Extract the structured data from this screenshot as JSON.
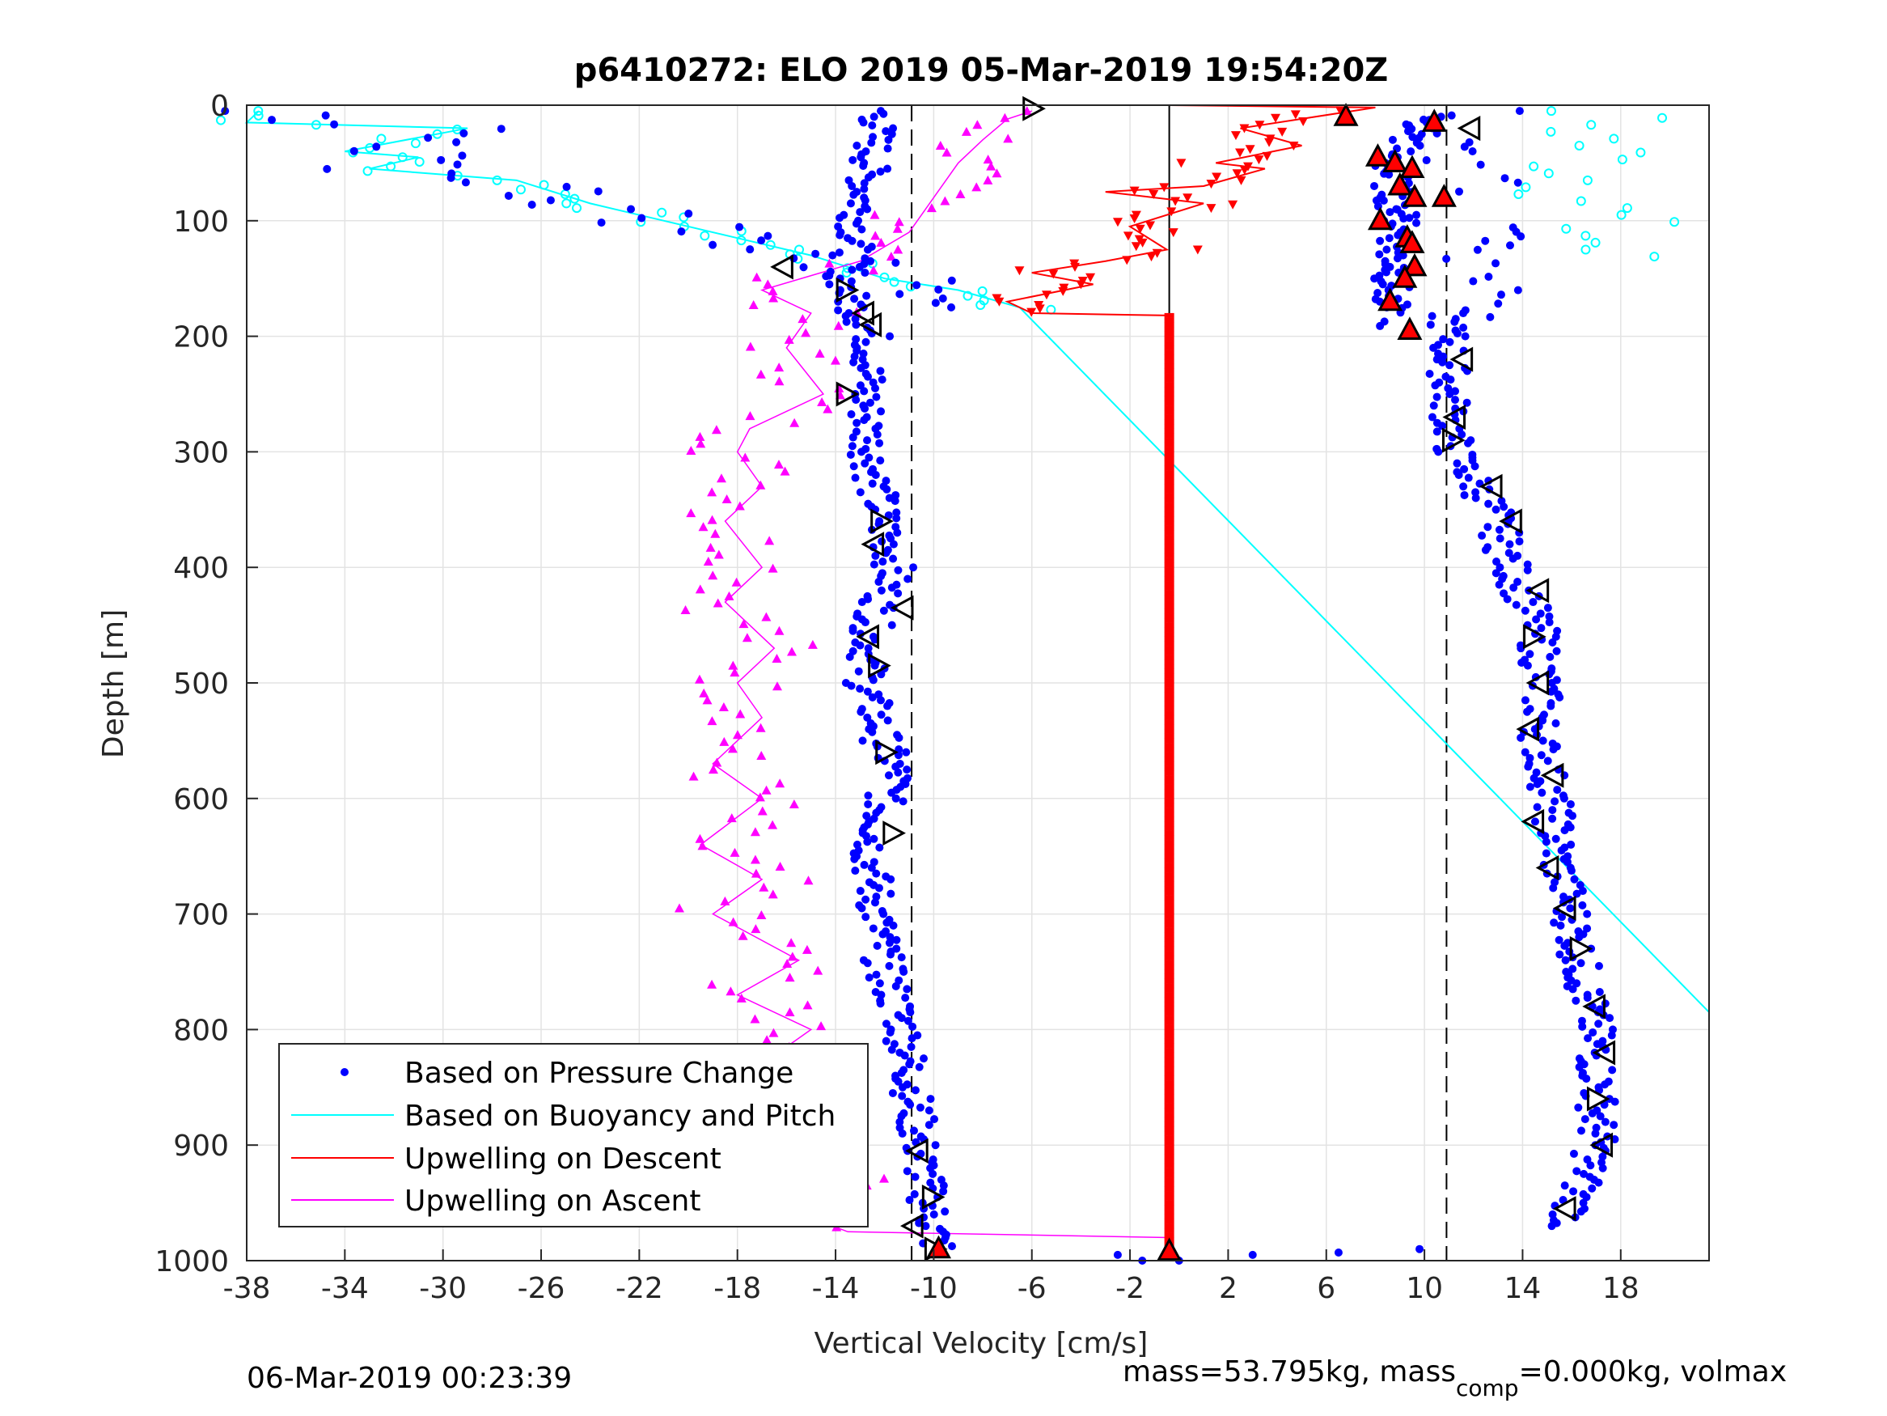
{
  "chart_data": {
    "type": "scatter",
    "title": "p6410272: ELO 2019 05-Mar-2019 19:54:20Z",
    "xlabel": "Vertical Velocity [cm/s]",
    "ylabel": "Depth [m]",
    "xlim": [
      -38,
      21.6
    ],
    "ylim": [
      0,
      1000
    ],
    "y_reversed": true,
    "x_ticks": [
      -38,
      -34,
      -30,
      -26,
      -22,
      -18,
      -14,
      -10,
      -6,
      -2,
      2,
      6,
      10,
      14,
      18
    ],
    "y_ticks": [
      0,
      100,
      200,
      300,
      400,
      500,
      600,
      700,
      800,
      900,
      1000
    ],
    "grid": true,
    "legend_position": "bottom-left",
    "legend": [
      {
        "label": "Based on Pressure Change",
        "color": "#0000ff",
        "style": "dot"
      },
      {
        "label": "Based on Buoyancy and Pitch",
        "color": "#00ffff",
        "style": "line"
      },
      {
        "label": "Upwelling on Descent",
        "color": "#ff0000",
        "style": "line"
      },
      {
        "label": "Upwelling on Ascent",
        "color": "#ff00ff",
        "style": "line"
      }
    ],
    "reference_lines": {
      "dashed_x": [
        -10.9,
        10.9
      ],
      "solid_x": [
        -0.4
      ]
    },
    "series": [
      {
        "name": "Based on Pressure Change",
        "color": "#0000ff",
        "descent": [
          [
            -12.2,
            5
          ],
          [
            -13.6,
            160
          ],
          [
            -12.5,
            200
          ],
          [
            -12.8,
            250
          ],
          [
            -12.6,
            300
          ],
          [
            -12.2,
            350
          ],
          [
            -11.6,
            400
          ],
          [
            -12.5,
            450
          ],
          [
            -12.8,
            500
          ],
          [
            -12.1,
            550
          ],
          [
            -11.5,
            580
          ],
          [
            -12.0,
            600
          ],
          [
            -12.6,
            650
          ],
          [
            -12.3,
            700
          ],
          [
            -12.0,
            750
          ],
          [
            -11.2,
            800
          ],
          [
            -10.9,
            850
          ],
          [
            -10.6,
            900
          ],
          [
            -10.3,
            940
          ],
          [
            -9.8,
            990
          ]
        ],
        "ascent": [
          [
            8.5,
            175
          ],
          [
            8.8,
            140
          ],
          [
            9.0,
            100
          ],
          [
            8.5,
            50
          ],
          [
            10.2,
            10
          ],
          [
            11.0,
            200
          ],
          [
            11.0,
            250
          ],
          [
            11.2,
            300
          ],
          [
            12.8,
            350
          ],
          [
            13.5,
            400
          ],
          [
            14.6,
            450
          ],
          [
            14.8,
            500
          ],
          [
            14.7,
            550
          ],
          [
            15.2,
            600
          ],
          [
            15.4,
            650
          ],
          [
            16.0,
            700
          ],
          [
            16.4,
            750
          ],
          [
            16.9,
            800
          ],
          [
            17.1,
            850
          ],
          [
            17.0,
            900
          ],
          [
            16.3,
            940
          ],
          [
            15.8,
            970
          ]
        ],
        "stall": [
          [
            -2.5,
            995
          ],
          [
            -1.5,
            1000
          ],
          [
            0.0,
            1000
          ],
          [
            3.0,
            995
          ],
          [
            6.5,
            993
          ],
          [
            9.8,
            990
          ]
        ]
      },
      {
        "name": "Based on Buoyancy and Pitch",
        "color": "#00ffff",
        "points": [
          [
            -37.5,
            5
          ],
          [
            -38,
            15
          ],
          [
            -29,
            20
          ],
          [
            -34,
            40
          ],
          [
            -31,
            45
          ],
          [
            -33,
            55
          ],
          [
            -27,
            65
          ],
          [
            -24,
            85
          ],
          [
            -20,
            105
          ],
          [
            -15,
            130
          ],
          [
            -12,
            150
          ],
          [
            -9,
            160
          ],
          [
            -6.5,
            175
          ],
          [
            21.6,
            785
          ]
        ]
      },
      {
        "name": "Upwelling on Descent",
        "color": "#ff0000",
        "points": [
          [
            -0.4,
            0
          ],
          [
            8,
            2
          ],
          [
            2.5,
            20
          ],
          [
            5,
            35
          ],
          [
            1.5,
            50
          ],
          [
            3.5,
            55
          ],
          [
            1,
            70
          ],
          [
            -3,
            75
          ],
          [
            1,
            85
          ],
          [
            -2,
            105
          ],
          [
            -0.5,
            125
          ],
          [
            -3,
            135
          ],
          [
            -6,
            145
          ],
          [
            -3.5,
            155
          ],
          [
            -7,
            170
          ],
          [
            -6,
            180
          ],
          [
            -0.4,
            182
          ],
          [
            -0.4,
            990
          ]
        ]
      },
      {
        "name": "Upwelling on Ascent",
        "color": "#ff00ff",
        "points": [
          [
            -0.4,
            980
          ],
          [
            -13.5,
            975
          ],
          [
            -16,
            955
          ],
          [
            -13,
            935
          ],
          [
            -16.5,
            900
          ],
          [
            -14,
            860
          ],
          [
            -17,
            830
          ],
          [
            -15,
            800
          ],
          [
            -18,
            770
          ],
          [
            -15.5,
            740
          ],
          [
            -19,
            700
          ],
          [
            -17,
            670
          ],
          [
            -19.5,
            640
          ],
          [
            -17,
            600
          ],
          [
            -19,
            570
          ],
          [
            -17,
            530
          ],
          [
            -18,
            500
          ],
          [
            -16.5,
            470
          ],
          [
            -18.5,
            430
          ],
          [
            -17,
            400
          ],
          [
            -18.5,
            360
          ],
          [
            -17,
            330
          ],
          [
            -18,
            300
          ],
          [
            -17.5,
            280
          ],
          [
            -14.5,
            250
          ],
          [
            -16,
            210
          ],
          [
            -15,
            180
          ],
          [
            -17,
            160
          ],
          [
            -13,
            135
          ],
          [
            -11,
            110
          ],
          [
            -10,
            80
          ],
          [
            -9,
            50
          ],
          [
            -8,
            30
          ],
          [
            -7,
            12
          ],
          [
            -6,
            5
          ]
        ]
      }
    ],
    "markers": {
      "open_triangles": [
        [
          -6,
          3
        ],
        [
          11.9,
          20
        ],
        [
          -16.1,
          140
        ],
        [
          -13.6,
          160
        ],
        [
          -12.8,
          180
        ],
        [
          -12.5,
          190
        ],
        [
          -13.6,
          250
        ],
        [
          11.6,
          220
        ],
        [
          11.3,
          270
        ],
        [
          11.1,
          290
        ],
        [
          12.8,
          330
        ],
        [
          13.6,
          360
        ],
        [
          -12.2,
          360
        ],
        [
          -12.4,
          380
        ],
        [
          14.7,
          420
        ],
        [
          14.4,
          460
        ],
        [
          -11.2,
          435
        ],
        [
          -12.6,
          460
        ],
        [
          -12.3,
          485
        ],
        [
          14.7,
          500
        ],
        [
          14.3,
          540
        ],
        [
          -12.0,
          560
        ],
        [
          15.3,
          580
        ],
        [
          14.5,
          620
        ],
        [
          -11.7,
          630
        ],
        [
          15.1,
          660
        ],
        [
          15.8,
          695
        ],
        [
          16.3,
          730
        ],
        [
          17.0,
          780
        ],
        [
          17.4,
          820
        ],
        [
          17.0,
          860
        ],
        [
          17.3,
          900
        ],
        [
          -10.6,
          905
        ],
        [
          -10.1,
          945
        ],
        [
          15.8,
          955
        ],
        [
          -10.8,
          970
        ],
        [
          -10.0,
          990
        ]
      ],
      "red_triangles": [
        [
          6.8,
          10
        ],
        [
          10.4,
          15
        ],
        [
          8.1,
          45
        ],
        [
          8.8,
          50
        ],
        [
          9.5,
          55
        ],
        [
          9.0,
          70
        ],
        [
          9.6,
          80
        ],
        [
          10.8,
          80
        ],
        [
          8.2,
          100
        ],
        [
          9.3,
          115
        ],
        [
          9.5,
          120
        ],
        [
          9.6,
          140
        ],
        [
          9.2,
          150
        ],
        [
          8.6,
          170
        ],
        [
          9.4,
          195
        ],
        [
          -0.4,
          992
        ],
        [
          -9.8,
          990
        ]
      ]
    },
    "footer_left": "06-Mar-2019 00:23:39",
    "footer_right": {
      "main": "mass=53.795kg, mass",
      "sub": "comp",
      "rest": "=0.000kg, volmax"
    }
  }
}
